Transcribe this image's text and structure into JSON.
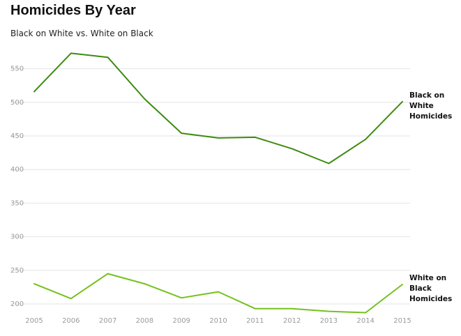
{
  "chart_data": {
    "type": "line",
    "title": "Homicides By Year",
    "subtitle": "Black on White vs. White on Black",
    "x": [
      2005,
      2006,
      2007,
      2008,
      2009,
      2010,
      2011,
      2012,
      2013,
      2014,
      2015
    ],
    "y_ticks": [
      200,
      250,
      300,
      350,
      400,
      450,
      500,
      550
    ],
    "ylim": [
      190,
      575
    ],
    "grid": true,
    "legend": "direct labels at right end of lines",
    "series": [
      {
        "name": "Black on White Homicides",
        "label_lines": [
          "Black on",
          "White",
          "Homicides"
        ],
        "color": "#3d8b10",
        "values": [
          516,
          573,
          567,
          505,
          454,
          447,
          448,
          431,
          409,
          445,
          501
        ]
      },
      {
        "name": "White on Black Homicides",
        "label_lines": [
          "White on",
          "Black",
          "Homicides"
        ],
        "color": "#74c11c",
        "values": [
          230,
          208,
          245,
          230,
          209,
          218,
          193,
          193,
          189,
          187,
          229
        ]
      }
    ]
  }
}
